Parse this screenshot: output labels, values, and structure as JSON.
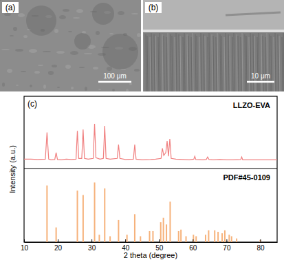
{
  "panels": [
    {
      "label": "(a)",
      "scale_bar": "100 μm"
    },
    {
      "label": "(b)",
      "scale_bar": "10 μm"
    }
  ],
  "chart_data": {
    "type": "line",
    "title": "(c)",
    "xlabel": "2 theta (degree)",
    "ylabel": "Intensity (a.u.)",
    "xlim": [
      10,
      85
    ],
    "xticks": [
      10,
      20,
      30,
      40,
      50,
      60,
      70,
      80
    ],
    "tick_labels": "x",
    "series": [
      {
        "name": "LLZO-EVA",
        "type": "line",
        "color": "#f07f7f",
        "ylim": [
          0,
          100
        ],
        "x": [
          10,
          12,
          14,
          16.3,
          16.8,
          17.3,
          18,
          19.1,
          19.5,
          19.9,
          21,
          22.5,
          24,
          25.4,
          25.8,
          26.2,
          27.1,
          27.5,
          27.9,
          29,
          30.5,
          30.9,
          31.3,
          32.5,
          33.5,
          33.9,
          34.3,
          35.5,
          37.6,
          38,
          38.4,
          40,
          42.4,
          42.8,
          43.2,
          45,
          47.5,
          49,
          50.6,
          51,
          51.4,
          52,
          52.4,
          52.8,
          53.2,
          53.6,
          55,
          57,
          59,
          60.3,
          60.6,
          60.9,
          63,
          64,
          64.4,
          64.8,
          66,
          68,
          70,
          72,
          74.2,
          74.5,
          74.8,
          77,
          80,
          82,
          85
        ],
        "values": [
          13,
          13,
          12.5,
          13,
          50,
          13,
          12,
          12.5,
          22,
          12.5,
          12,
          13,
          12.5,
          13,
          52,
          14,
          14,
          54,
          14,
          13,
          14,
          62,
          15,
          13,
          14,
          59,
          14,
          13,
          14,
          33,
          14,
          12.5,
          13,
          33,
          13,
          12,
          12.5,
          13,
          14,
          28,
          18,
          22,
          38,
          17,
          41,
          14,
          13,
          12.5,
          12,
          13,
          17,
          12.5,
          12,
          12.5,
          16,
          12.5,
          12,
          12.5,
          12,
          12,
          12.5,
          16,
          12,
          12,
          12,
          12,
          12
        ]
      },
      {
        "name": "PDF#45-0109",
        "type": "bar",
        "color": "#f6b27b",
        "ylim": [
          0,
          100
        ],
        "x": [
          16.8,
          19.5,
          25.8,
          27.5,
          30.9,
          32.3,
          33.9,
          35.5,
          38,
          40.5,
          42.8,
          44.5,
          47.2,
          48.2,
          50.5,
          51.3,
          52.2,
          53.3,
          55.8,
          56.5,
          58,
          60.2,
          61,
          63.8,
          64.7,
          66.5,
          67.5,
          68.7,
          69.5,
          70.8,
          71.5,
          73,
          80
        ],
        "values": [
          77,
          20,
          70,
          64,
          81,
          10,
          73,
          8,
          30,
          10,
          38,
          8,
          15,
          15,
          27,
          33,
          24,
          55,
          15,
          17,
          8,
          10,
          8,
          10,
          16,
          16,
          14,
          12,
          16,
          10,
          8,
          5,
          3
        ]
      }
    ]
  }
}
